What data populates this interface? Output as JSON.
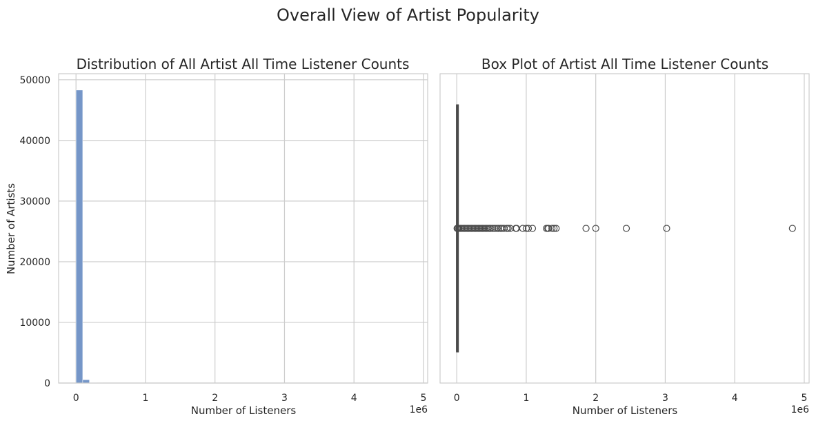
{
  "figure": {
    "suptitle": "Overall View of Artist Popularity"
  },
  "chart_data": [
    {
      "type": "bar",
      "title": "Distribution of All Artist All Time Listener Counts",
      "xlabel": "Number of Listeners",
      "ylabel": "Number of Artists",
      "x_offset_label": "1e6",
      "xlim": [
        -0.25,
        5.06
      ],
      "ylim": [
        0,
        51000
      ],
      "xticks": [
        0,
        1,
        2,
        3,
        4,
        5
      ],
      "xtick_labels": [
        "0",
        "1",
        "2",
        "3",
        "4",
        "5"
      ],
      "yticks": [
        0,
        10000,
        20000,
        30000,
        40000,
        50000
      ],
      "ytick_labels": [
        "0",
        "10000",
        "20000",
        "30000",
        "40000",
        "50000"
      ],
      "grid": true,
      "bin_width": 0.0966,
      "bins": [
        {
          "x0": 0.0,
          "x1": 0.0966,
          "count": 48300
        },
        {
          "x0": 0.0966,
          "x1": 0.1932,
          "count": 550
        },
        {
          "x0": 0.1932,
          "x1": 0.2898,
          "count": 90
        },
        {
          "x0": 0.2898,
          "x1": 0.3864,
          "count": 35
        },
        {
          "x0": 0.3864,
          "x1": 0.483,
          "count": 18
        },
        {
          "x0": 0.483,
          "x1": 0.5796,
          "count": 10
        },
        {
          "x0": 0.5796,
          "x1": 0.6762,
          "count": 6
        },
        {
          "x0": 0.6762,
          "x1": 0.7728,
          "count": 4
        },
        {
          "x0": 0.7728,
          "x1": 0.8694,
          "count": 3
        },
        {
          "x0": 0.8694,
          "x1": 0.966,
          "count": 2
        },
        {
          "x0": 0.966,
          "x1": 1.0626,
          "count": 2
        },
        {
          "x0": 1.0626,
          "x1": 1.1592,
          "count": 1
        },
        {
          "x0": 1.2558,
          "x1": 1.3524,
          "count": 3
        },
        {
          "x0": 1.3524,
          "x1": 1.449,
          "count": 3
        },
        {
          "x0": 1.8354,
          "x1": 1.932,
          "count": 1
        },
        {
          "x0": 1.932,
          "x1": 2.0286,
          "count": 1
        },
        {
          "x0": 2.415,
          "x1": 2.5116,
          "count": 1
        },
        {
          "x0": 2.9946,
          "x1": 3.0912,
          "count": 1
        },
        {
          "x0": 4.7334,
          "x1": 4.83,
          "count": 1
        }
      ],
      "bar_color": "#7596c8"
    },
    {
      "type": "box",
      "title": "Box Plot of Artist All Time Listener Counts",
      "xlabel": "Number of Listeners",
      "x_offset_label": "1e6",
      "xlim": [
        -0.24,
        5.07
      ],
      "xticks": [
        0,
        1,
        2,
        3,
        4,
        5
      ],
      "xtick_labels": [
        "0",
        "1",
        "2",
        "3",
        "4",
        "5"
      ],
      "grid": true,
      "box": {
        "q1": 0.0,
        "median": 0.0002,
        "q3": 0.0012,
        "whisker_low": 0.0,
        "whisker_high": 0.003
      },
      "fliers": [
        0.005,
        0.015,
        0.03,
        0.05,
        0.07,
        0.09,
        0.11,
        0.13,
        0.15,
        0.17,
        0.19,
        0.21,
        0.23,
        0.25,
        0.27,
        0.29,
        0.31,
        0.33,
        0.35,
        0.37,
        0.39,
        0.41,
        0.43,
        0.45,
        0.47,
        0.49,
        0.52,
        0.55,
        0.58,
        0.6,
        0.63,
        0.65,
        0.68,
        0.72,
        0.74,
        0.77,
        0.85,
        0.86,
        0.95,
        1.0,
        1.03,
        1.09,
        1.29,
        1.31,
        1.32,
        1.37,
        1.4,
        1.43,
        1.86,
        2.0,
        2.44,
        3.02,
        4.83
      ],
      "line_color": "#4a4a4a"
    }
  ]
}
